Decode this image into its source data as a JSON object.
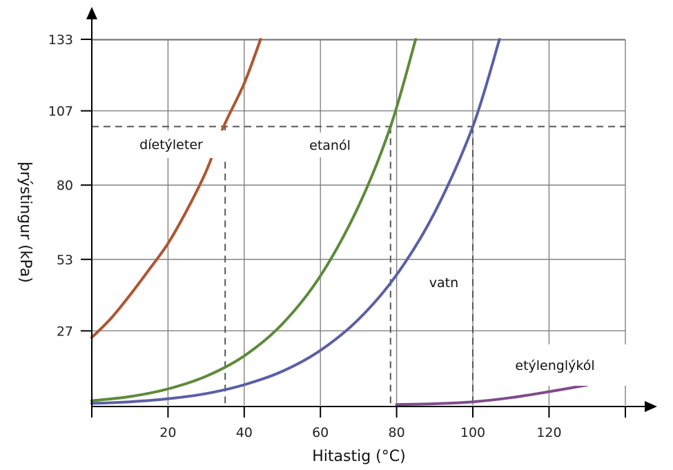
{
  "chart_data": {
    "type": "line",
    "xlabel": "Hitastig (°C)",
    "ylabel": "þrýstingur (kPa)",
    "xlim": [
      0,
      140
    ],
    "ylim": [
      0,
      133
    ],
    "x_ticks": [
      20,
      40,
      60,
      80,
      100,
      120
    ],
    "y_ticks": [
      27,
      53,
      80,
      107,
      133
    ],
    "grid": true,
    "reference_pressure": 101.3,
    "boiling_points": [
      35,
      78.4,
      100
    ],
    "series": [
      {
        "name": "díetýleter",
        "color": "#b0552f",
        "x": [
          0,
          5,
          10,
          15,
          20,
          25,
          30,
          34.6,
          40,
          44.3
        ],
        "y": [
          24.6,
          31.5,
          40,
          49.2,
          58.8,
          71,
          85,
          101.3,
          117,
          133
        ]
      },
      {
        "name": "etanól",
        "color": "#5e8a3a",
        "x": [
          0,
          10,
          20,
          30,
          40,
          50,
          60,
          70,
          78.4,
          85
        ],
        "y": [
          1.6,
          3.1,
          5.9,
          10.5,
          17.9,
          29.5,
          47,
          72.3,
          101.3,
          133
        ]
      },
      {
        "name": "vatn",
        "color": "#5b5fa8",
        "x": [
          0,
          10,
          20,
          30,
          40,
          50,
          60,
          70,
          80,
          90,
          100,
          107
        ],
        "y": [
          0.6,
          1.2,
          2.3,
          4.2,
          7.4,
          12.3,
          19.9,
          31.2,
          47.4,
          70.1,
          101.3,
          133
        ]
      },
      {
        "name": "etýlenglýkól",
        "color": "#7f4c8a",
        "x": [
          80,
          90,
          100,
          110,
          120,
          130
        ],
        "y": [
          0.2,
          0.5,
          1.2,
          2.7,
          4.9,
          7.3
        ]
      }
    ]
  }
}
